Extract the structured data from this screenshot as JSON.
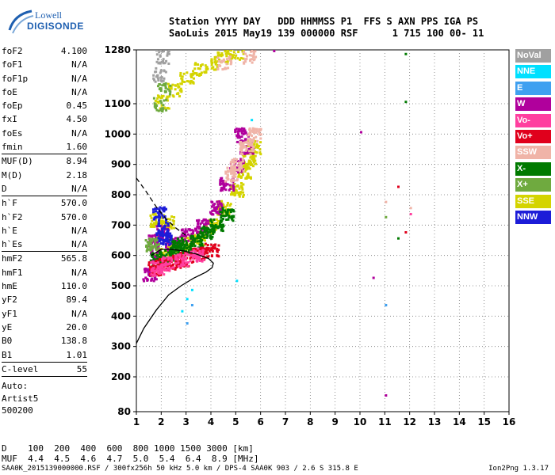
{
  "logo": {
    "line1": "Lowell",
    "line2": "DIGISONDE"
  },
  "header": {
    "row1": "Station YYYY DAY   DDD HHMMSS P1  FFS S AXN PPS IGA PS",
    "row2": "SaoLuis 2015 May19 139 000000 RSF      1 715 100 00- 11"
  },
  "params": [
    {
      "name": "foF2",
      "value": "4.100"
    },
    {
      "name": "foF1",
      "value": "N/A"
    },
    {
      "name": "foF1p",
      "value": "N/A"
    },
    {
      "name": "foE",
      "value": "N/A"
    },
    {
      "name": "foEp",
      "value": "0.45"
    },
    {
      "name": "fxI",
      "value": "4.50"
    },
    {
      "name": "foEs",
      "value": "N/A"
    },
    {
      "name": "fmin",
      "value": "1.60"
    },
    {
      "name": "MUF(D)",
      "value": "8.94",
      "sep": true
    },
    {
      "name": "M(D)",
      "value": "2.18"
    },
    {
      "name": "D",
      "value": "N/A"
    },
    {
      "name": "h`F",
      "value": "570.0",
      "sep": true
    },
    {
      "name": "h`F2",
      "value": "570.0"
    },
    {
      "name": "h`E",
      "value": "N/A"
    },
    {
      "name": "h`Es",
      "value": "N/A"
    },
    {
      "name": "hmF2",
      "value": "565.8",
      "sep": true
    },
    {
      "name": "hmF1",
      "value": "N/A"
    },
    {
      "name": "hmE",
      "value": "110.0"
    },
    {
      "name": "yF2",
      "value": "89.4"
    },
    {
      "name": "yF1",
      "value": "N/A"
    },
    {
      "name": "yE",
      "value": "20.0"
    },
    {
      "name": "B0",
      "value": "138.8"
    },
    {
      "name": "B1",
      "value": "1.01"
    },
    {
      "name": "C-level",
      "value": "55",
      "sep": true
    }
  ],
  "auto": {
    "line1": "Auto:",
    "line2": "Artist5",
    "line3": "500200"
  },
  "legend": [
    {
      "label": "NoVal",
      "color": "#a0a0a0"
    },
    {
      "label": "NNE",
      "color": "#00e0ff"
    },
    {
      "label": "E",
      "color": "#3fa0f0"
    },
    {
      "label": "W",
      "color": "#b0009c"
    },
    {
      "label": "Vo-",
      "color": "#ff3f9f"
    },
    {
      "label": "Vo+",
      "color": "#e0001c"
    },
    {
      "label": "SSW",
      "color": "#f0b4a8"
    },
    {
      "label": "X-",
      "color": "#007a00"
    },
    {
      "label": "X+",
      "color": "#6faa3f"
    },
    {
      "label": "SSE",
      "color": "#d4d400"
    },
    {
      "label": "NNW",
      "color": "#1c1cd8"
    }
  ],
  "chart_data": {
    "type": "scatter",
    "xlim": [
      1,
      16
    ],
    "ylim": [
      80,
      1280
    ],
    "xticks": [
      "1",
      "2",
      "3",
      "4",
      "5",
      "6",
      "7",
      "8",
      "9",
      "10",
      "11",
      "12",
      "13",
      "14",
      "15",
      "16"
    ],
    "yticks": [
      "80",
      "200",
      "300",
      "400",
      "500",
      "600",
      "700",
      "800",
      "900",
      "1000",
      "1100",
      "1280"
    ],
    "grid": true,
    "series": [
      {
        "name": "SSE",
        "color": "#d4d400",
        "points": [
          [
            2.0,
            610
          ],
          [
            2.5,
            620
          ],
          [
            3.0,
            640
          ],
          [
            3.5,
            660
          ],
          [
            4.0,
            700
          ],
          [
            4.5,
            760
          ],
          [
            5.0,
            820
          ],
          [
            5.3,
            880
          ],
          [
            5.5,
            920
          ],
          [
            5.7,
            960
          ],
          [
            2.0,
            1110
          ],
          [
            2.5,
            1150
          ],
          [
            3.0,
            1190
          ],
          [
            3.5,
            1220
          ],
          [
            4.0,
            1240
          ],
          [
            4.5,
            1260
          ],
          [
            5.0,
            1270
          ],
          [
            1.8,
            720
          ],
          [
            2.2,
            710
          ]
        ]
      },
      {
        "name": "W",
        "color": "#b0009c",
        "points": [
          [
            1.8,
            600
          ],
          [
            2.4,
            640
          ],
          [
            3.0,
            670
          ],
          [
            3.6,
            700
          ],
          [
            4.2,
            760
          ],
          [
            4.6,
            840
          ],
          [
            5.0,
            900
          ],
          [
            5.4,
            960
          ],
          [
            5.2,
            1000
          ],
          [
            1.7,
            650
          ],
          [
            2.0,
            680
          ],
          [
            6.5,
            1280
          ],
          [
            10.0,
            1010
          ],
          [
            10.5,
            530
          ],
          [
            11.0,
            140
          ],
          [
            1.5,
            540
          ]
        ]
      },
      {
        "name": "X-",
        "color": "#007a00",
        "points": [
          [
            1.8,
            590
          ],
          [
            2.2,
            600
          ],
          [
            2.6,
            620
          ],
          [
            3.0,
            630
          ],
          [
            3.4,
            650
          ],
          [
            3.8,
            680
          ],
          [
            4.2,
            700
          ],
          [
            4.6,
            740
          ],
          [
            11.8,
            1270
          ],
          [
            11.8,
            1110
          ],
          [
            11.5,
            660
          ],
          [
            2.6,
            640
          ]
        ]
      },
      {
        "name": "SSW",
        "color": "#f0b4a8",
        "points": [
          [
            5.0,
            900
          ],
          [
            5.4,
            960
          ],
          [
            5.7,
            1000
          ],
          [
            5.8,
            1020
          ],
          [
            4.8,
            870
          ],
          [
            4.5,
            1240
          ],
          [
            5.5,
            1260
          ],
          [
            11.0,
            780
          ],
          [
            12.0,
            760
          ]
        ]
      },
      {
        "name": "Vo+",
        "color": "#e0001c",
        "points": [
          [
            1.7,
            560
          ],
          [
            2.0,
            570
          ],
          [
            2.5,
            580
          ],
          [
            3.0,
            590
          ],
          [
            3.5,
            610
          ],
          [
            4.0,
            620
          ],
          [
            11.5,
            830
          ],
          [
            11.8,
            680
          ]
        ]
      },
      {
        "name": "Vo-",
        "color": "#ff3f9f",
        "points": [
          [
            1.8,
            560
          ],
          [
            2.2,
            575
          ],
          [
            2.8,
            590
          ],
          [
            3.4,
            605
          ],
          [
            12.0,
            740
          ]
        ]
      },
      {
        "name": "NNE",
        "color": "#00e0ff",
        "points": [
          [
            2.8,
            420
          ],
          [
            3.0,
            460
          ],
          [
            3.2,
            490
          ],
          [
            5.0,
            520
          ],
          [
            5.6,
            1050
          ]
        ]
      },
      {
        "name": "E",
        "color": "#3fa0f0",
        "points": [
          [
            3.0,
            380
          ],
          [
            3.2,
            440
          ],
          [
            11.0,
            440
          ]
        ]
      },
      {
        "name": "X+",
        "color": "#6faa3f",
        "points": [
          [
            1.9,
            1100
          ],
          [
            2.1,
            1150
          ],
          [
            11.0,
            730
          ],
          [
            1.6,
            640
          ]
        ]
      },
      {
        "name": "NNW",
        "color": "#1c1cd8",
        "points": [
          [
            1.9,
            740
          ],
          [
            2.0,
            690
          ],
          [
            2.1,
            660
          ]
        ]
      },
      {
        "name": "NoVal",
        "color": "#a0a0a0",
        "points": [
          [
            1.9,
            1200
          ],
          [
            2.0,
            1260
          ]
        ]
      }
    ],
    "profile_line": [
      [
        1.0,
        310
      ],
      [
        1.3,
        360
      ],
      [
        1.8,
        420
      ],
      [
        2.3,
        470
      ],
      [
        2.8,
        500
      ],
      [
        3.3,
        525
      ],
      [
        3.8,
        545
      ],
      [
        4.05,
        560
      ],
      [
        4.1,
        575
      ],
      [
        3.9,
        590
      ],
      [
        3.4,
        605
      ],
      [
        2.9,
        615
      ],
      [
        2.4,
        620
      ],
      [
        2.0,
        620
      ],
      [
        1.6,
        600
      ]
    ],
    "trace_dashed": [
      [
        1.0,
        855
      ],
      [
        1.4,
        810
      ],
      [
        1.8,
        760
      ],
      [
        2.2,
        720
      ],
      [
        2.6,
        690
      ],
      [
        3.0,
        665
      ]
    ]
  },
  "footer": {
    "row1": "D    100  200  400  600  800 1000 1500 3000 [km]",
    "row2": "MUF  4.4  4.5  4.6  4.7  5.0  5.4  6.4  8.9 [MHz]",
    "bottom": "SAA0K_2015139000000.RSF / 300fx256h 50 kHz 5.0 km / DPS-4 SAA0K 903 / 2.6 S 315.8 E",
    "version": "Ion2Png 1.3.17"
  }
}
